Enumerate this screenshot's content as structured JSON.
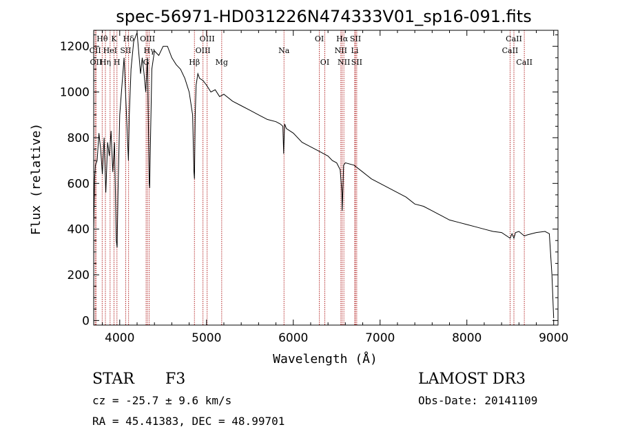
{
  "chart_data": {
    "type": "line",
    "title": "spec-56971-HD031226N474333V01_sp16-091.fits",
    "xlabel": "Wavelength (Å)",
    "ylabel": "Flux (relative)",
    "xlim": [
      3700,
      9050
    ],
    "ylim": [
      -20,
      1270
    ],
    "xticks": [
      4000,
      5000,
      6000,
      7000,
      8000,
      9000
    ],
    "xtick_labels": [
      "4000",
      "5000",
      "6000",
      "7000",
      "8000",
      "9000"
    ],
    "yticks": [
      0,
      200,
      400,
      600,
      800,
      1000,
      1200
    ],
    "ytick_labels": [
      "0",
      "200",
      "400",
      "600",
      "800",
      "1000",
      "1200"
    ],
    "grid": false,
    "series": [
      {
        "name": "spectrum",
        "x": [
          3700,
          3710,
          3720,
          3740,
          3760,
          3780,
          3800,
          3820,
          3840,
          3860,
          3880,
          3900,
          3920,
          3940,
          3960,
          3970,
          3980,
          4000,
          4020,
          4050,
          4080,
          4100,
          4110,
          4130,
          4160,
          4200,
          4240,
          4260,
          4280,
          4300,
          4320,
          4340,
          4345,
          4350,
          4370,
          4400,
          4450,
          4500,
          4550,
          4600,
          4650,
          4700,
          4750,
          4800,
          4840,
          4855,
          4861,
          4870,
          4880,
          4900,
          4920,
          4960,
          5000,
          5050,
          5100,
          5150,
          5200,
          5300,
          5400,
          5500,
          5600,
          5700,
          5800,
          5850,
          5880,
          5889,
          5893,
          5900,
          5920,
          6000,
          6100,
          6200,
          6300,
          6400,
          6450,
          6500,
          6540,
          6560,
          6563,
          6570,
          6580,
          6600,
          6700,
          6800,
          6900,
          7000,
          7100,
          7200,
          7300,
          7400,
          7500,
          7600,
          7700,
          7800,
          7900,
          8000,
          8100,
          8200,
          8300,
          8400,
          8498,
          8520,
          8542,
          8560,
          8600,
          8662,
          8700,
          8800,
          8900,
          8950,
          8980,
          9000
        ],
        "y": [
          400,
          620,
          680,
          700,
          820,
          750,
          640,
          800,
          560,
          780,
          720,
          830,
          650,
          780,
          350,
          320,
          560,
          900,
          1000,
          1150,
          880,
          700,
          900,
          1100,
          1220,
          1260,
          1080,
          1150,
          1080,
          1000,
          1150,
          600,
          580,
          700,
          1100,
          1180,
          1160,
          1200,
          1200,
          1150,
          1120,
          1100,
          1060,
          1000,
          900,
          650,
          620,
          900,
          1030,
          1080,
          1060,
          1050,
          1030,
          1000,
          1010,
          980,
          990,
          960,
          940,
          920,
          900,
          880,
          870,
          860,
          850,
          730,
          780,
          860,
          840,
          820,
          780,
          760,
          740,
          720,
          700,
          690,
          660,
          560,
          480,
          560,
          680,
          690,
          680,
          650,
          620,
          600,
          580,
          560,
          540,
          510,
          500,
          480,
          460,
          440,
          430,
          420,
          410,
          400,
          390,
          385,
          360,
          380,
          360,
          385,
          390,
          370,
          375,
          385,
          390,
          380,
          200,
          10
        ]
      }
    ],
    "line_markers": [
      {
        "name": "CII",
        "x": 3717,
        "row": 1
      },
      {
        "name": "OII",
        "x": 3727,
        "row": 2
      },
      {
        "name": "Hθ",
        "x": 3798,
        "row": 0
      },
      {
        "name": "Hη",
        "x": 3835,
        "row": 2
      },
      {
        "name": "HeI",
        "x": 3889,
        "row": 1
      },
      {
        "name": "K",
        "x": 3934,
        "row": 0
      },
      {
        "name": "H",
        "x": 3968,
        "row": 2
      },
      {
        "name": "SII",
        "x": 4069,
        "row": 1
      },
      {
        "name": "Hδ",
        "x": 4102,
        "row": 0
      },
      {
        "name": "OIII",
        "x": 4320,
        "row": 0
      },
      {
        "name": "Hγ",
        "x": 4340,
        "row": 1
      },
      {
        "name": "G",
        "x": 4304,
        "row": 2
      },
      {
        "name": "Hβ",
        "x": 4861,
        "row": 2
      },
      {
        "name": "OIII",
        "x": 4959,
        "row": 1
      },
      {
        "name": "OIII",
        "x": 5007,
        "row": 0
      },
      {
        "name": "Mg",
        "x": 5175,
        "row": 2
      },
      {
        "name": "Na",
        "x": 5893,
        "row": 1
      },
      {
        "name": "OI",
        "x": 6300,
        "row": 0
      },
      {
        "name": "OI",
        "x": 6363,
        "row": 2
      },
      {
        "name": "NII",
        "x": 6548,
        "row": 1
      },
      {
        "name": "Hα",
        "x": 6563,
        "row": 0
      },
      {
        "name": "NII",
        "x": 6583,
        "row": 2
      },
      {
        "name": "Li",
        "x": 6708,
        "row": 1
      },
      {
        "name": "SII",
        "x": 6716,
        "row": 0
      },
      {
        "name": "SII",
        "x": 6731,
        "row": 2
      },
      {
        "name": "CaII",
        "x": 8498,
        "row": 1
      },
      {
        "name": "CaII",
        "x": 8542,
        "row": 0
      },
      {
        "name": "CaII",
        "x": 8662,
        "row": 2
      }
    ],
    "colors": {
      "spectrum": "#000000",
      "markers": "#b22222",
      "axes": "#000000"
    }
  },
  "info": {
    "object_class": "STAR",
    "subclass": "F3",
    "survey": "LAMOST DR3",
    "cz": "cz = -25.7 ± 9.6 km/s",
    "obs_date": "Obs-Date: 20141109",
    "coords": "RA =  45.41383, DEC =  48.99701"
  }
}
